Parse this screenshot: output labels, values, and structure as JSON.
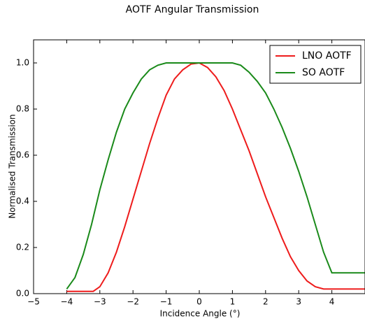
{
  "chart_data": {
    "type": "line",
    "title": "AOTF Angular Transmission",
    "x_label": "Incidence Angle (°)",
    "y_label": "Normalised Transmission",
    "xlim": [
      -5,
      5
    ],
    "ylim": [
      0,
      1.1
    ],
    "xticks": [
      {
        "value": -5,
        "label": "−5"
      },
      {
        "value": -4,
        "label": "−4"
      },
      {
        "value": -3,
        "label": "−3"
      },
      {
        "value": -2,
        "label": "−2"
      },
      {
        "value": -1,
        "label": "−1"
      },
      0,
      1,
      2,
      3,
      4
    ],
    "yticks": [
      {
        "value": 0,
        "label": "0.0"
      },
      0.2,
      0.4,
      0.6,
      0.8,
      {
        "value": 1,
        "label": "1.0"
      }
    ],
    "legend": "upper right",
    "series": [
      {
        "name": "LNO AOTF",
        "color": "#ee1c1c",
        "x": [
          -4,
          -3.5,
          -3.2,
          -3,
          -2.75,
          -2.5,
          -2.25,
          -2,
          -1.75,
          -1.5,
          -1.25,
          -1,
          -0.75,
          -0.5,
          -0.25,
          0,
          0.25,
          0.5,
          0.75,
          1,
          1.25,
          1.5,
          1.75,
          2,
          2.25,
          2.5,
          2.75,
          3,
          3.25,
          3.5,
          3.75,
          4,
          5
        ],
        "values": [
          0.01,
          0.01,
          0.01,
          0.03,
          0.09,
          0.18,
          0.29,
          0.41,
          0.53,
          0.65,
          0.76,
          0.86,
          0.93,
          0.97,
          0.995,
          1.0,
          0.98,
          0.94,
          0.88,
          0.8,
          0.71,
          0.62,
          0.52,
          0.42,
          0.33,
          0.24,
          0.16,
          0.1,
          0.055,
          0.03,
          0.02,
          0.02,
          0.02
        ]
      },
      {
        "name": "SO AOTF",
        "color": "#1a8a1a",
        "x": [
          -4,
          -3.75,
          -3.5,
          -3.25,
          -3,
          -2.75,
          -2.5,
          -2.25,
          -2,
          -1.75,
          -1.5,
          -1.25,
          -1,
          -0.75,
          0,
          0.75,
          1,
          1.25,
          1.5,
          1.75,
          2,
          2.25,
          2.5,
          2.75,
          3,
          3.25,
          3.5,
          3.75,
          4,
          4.25,
          5
        ],
        "values": [
          0.02,
          0.07,
          0.17,
          0.3,
          0.45,
          0.58,
          0.7,
          0.8,
          0.87,
          0.93,
          0.97,
          0.99,
          1.0,
          1.0,
          1.0,
          1.0,
          1.0,
          0.99,
          0.96,
          0.92,
          0.87,
          0.8,
          0.72,
          0.63,
          0.53,
          0.42,
          0.3,
          0.18,
          0.09,
          0.09,
          0.09
        ]
      }
    ]
  }
}
